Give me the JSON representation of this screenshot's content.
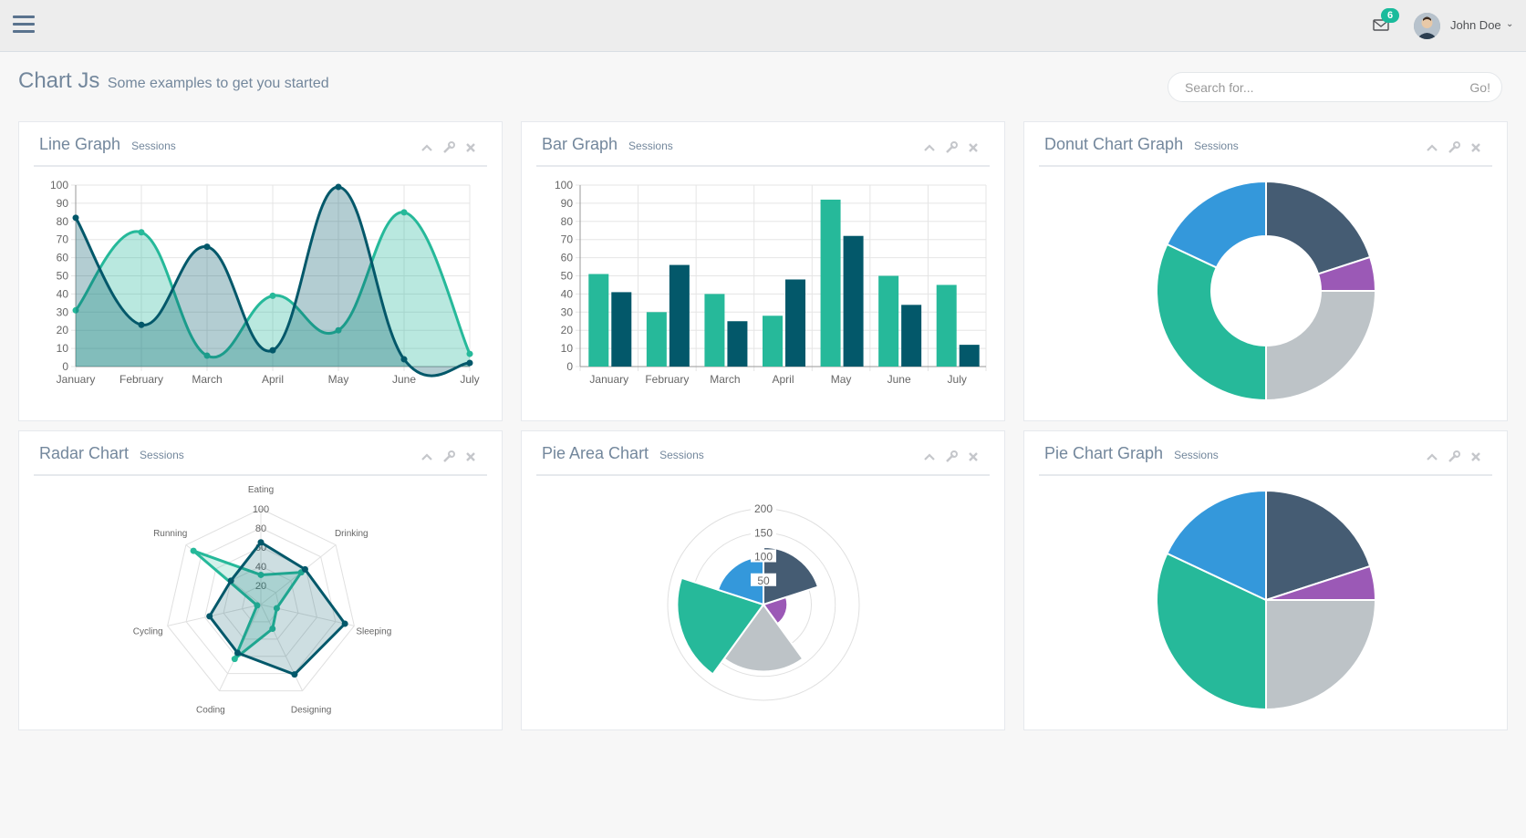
{
  "header": {
    "user_name": "John Doe",
    "mail_count": "6"
  },
  "page": {
    "title": "Chart Js",
    "subtitle": "Some examples to get you started"
  },
  "search": {
    "placeholder": "Search for...",
    "button": "Go!"
  },
  "panels": [
    {
      "title": "Line Graph",
      "subtitle": "Sessions"
    },
    {
      "title": "Bar Graph",
      "subtitle": "Sessions"
    },
    {
      "title": "Donut Chart Graph",
      "subtitle": "Sessions"
    },
    {
      "title": "Radar Chart",
      "subtitle": "Sessions"
    },
    {
      "title": "Pie Area Chart",
      "subtitle": "Sessions"
    },
    {
      "title": "Pie Chart Graph",
      "subtitle": "Sessions"
    }
  ],
  "colors": {
    "accent": "#1abb9c",
    "teal_light": "#26b99a",
    "teal_dark": "#03586a",
    "navy": "#455c73",
    "purple": "#9b59b6",
    "gray": "#bdc3c7",
    "blue": "#3498db"
  },
  "chart_data": [
    {
      "type": "line",
      "categories": [
        "January",
        "February",
        "March",
        "April",
        "May",
        "June",
        "July"
      ],
      "ylim": [
        0,
        100
      ],
      "yticks": [
        0,
        10,
        20,
        30,
        40,
        50,
        60,
        70,
        80,
        90,
        100
      ],
      "grid": true,
      "series": [
        {
          "values": [
            31,
            74,
            6,
            39,
            20,
            85,
            7
          ],
          "color": "#26b99a"
        },
        {
          "values": [
            82,
            23,
            66,
            9,
            99,
            4,
            2
          ],
          "color": "#03586a"
        }
      ]
    },
    {
      "type": "bar",
      "categories": [
        "January",
        "February",
        "March",
        "April",
        "May",
        "June",
        "July"
      ],
      "ylim": [
        0,
        100
      ],
      "yticks": [
        0,
        10,
        20,
        30,
        40,
        50,
        60,
        70,
        80,
        90,
        100
      ],
      "grid": true,
      "series": [
        {
          "values": [
            51,
            30,
            40,
            28,
            92,
            50,
            45
          ],
          "color": "#26b99a"
        },
        {
          "values": [
            41,
            56,
            25,
            48,
            72,
            34,
            12
          ],
          "color": "#03586a"
        }
      ]
    },
    {
      "type": "pie",
      "variant": "donut",
      "values": [
        20,
        5,
        25,
        32,
        18
      ],
      "colors": [
        "#455c73",
        "#9b59b6",
        "#bdc3c7",
        "#26b99a",
        "#3498db"
      ]
    },
    {
      "type": "radar",
      "labels": [
        "Eating",
        "Drinking",
        "Sleeping",
        "Designing",
        "Coding",
        "Cycling",
        "Running"
      ],
      "rmax": 100,
      "ticks": [
        20,
        40,
        60,
        80,
        100
      ],
      "series": [
        {
          "values": [
            31,
            54,
            17,
            28,
            63,
            4,
            90
          ],
          "color": "#26b99a"
        },
        {
          "values": [
            65,
            59,
            90,
            81,
            56,
            55,
            40
          ],
          "color": "#03586a"
        }
      ]
    },
    {
      "type": "pie",
      "variant": "polar-area",
      "values": [
        120,
        50,
        140,
        180,
        100
      ],
      "colors": [
        "#455c73",
        "#9b59b6",
        "#bdc3c7",
        "#26b99a",
        "#3498db"
      ],
      "rmax": 200,
      "ticks": [
        50,
        100,
        150,
        200
      ]
    },
    {
      "type": "pie",
      "values": [
        20,
        5,
        25,
        32,
        18
      ],
      "colors": [
        "#455c73",
        "#9b59b6",
        "#bdc3c7",
        "#26b99a",
        "#3498db"
      ]
    }
  ]
}
